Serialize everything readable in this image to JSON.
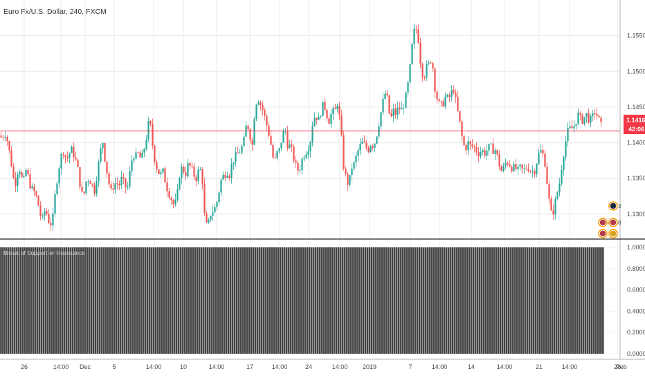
{
  "header": {
    "title": "Euro Fx/U.S. Dollar, 240, FXCM"
  },
  "price_tag": {
    "price": "1.14164",
    "countdown": "42:06"
  },
  "indicator": {
    "title": "Break of Support or Resistance"
  },
  "colors": {
    "up": "#26a69a",
    "down": "#ef5350",
    "price_line": "#f23645",
    "indicator_bar": "#555555",
    "grid": "#e9e9ed",
    "axis_text": "#4a4a4a",
    "separator": "#222222"
  },
  "event_icons": [
    {
      "name": "event-icon-1",
      "label": "3",
      "flag": "dark"
    },
    {
      "name": "event-icon-2",
      "label": "4",
      "flag": "us"
    },
    {
      "name": "event-icon-3",
      "label": "8",
      "flag": "us"
    },
    {
      "name": "event-icon-4",
      "label": "",
      "flag": "us"
    },
    {
      "name": "event-icon-5",
      "label": "",
      "flag": "de"
    }
  ],
  "chart_data": [
    {
      "type": "candlestick",
      "title": "Euro Fx/U.S. Dollar, 240, FXCM",
      "ylim": [
        1.1265,
        1.16
      ],
      "y_ticks": [
        "1.13000",
        "1.13500",
        "1.14000",
        "1.14500",
        "1.15000",
        "1.15500"
      ],
      "x_ticks": [
        "26",
        "14:00",
        "Dec",
        "5",
        "14:00",
        "10",
        "14:00",
        "17",
        "14:00",
        "24",
        "14:00",
        "2019",
        "7",
        "14:00",
        "14",
        "14:00",
        "21",
        "14:00",
        "28",
        "Feb"
      ],
      "current_price": 1.14164,
      "grid": true,
      "close_path": [
        [
          0,
          1.141
        ],
        [
          3,
          1.1405
        ],
        [
          6,
          1.1415
        ],
        [
          9,
          1.1412
        ],
        [
          12,
          1.1395
        ],
        [
          15,
          1.138
        ],
        [
          18,
          1.136
        ],
        [
          21,
          1.134
        ],
        [
          24,
          1.135
        ],
        [
          27,
          1.137
        ],
        [
          30,
          1.1355
        ],
        [
          33,
          1.1345
        ],
        [
          36,
          1.135
        ],
        [
          38,
          1.1365
        ],
        [
          42,
          1.1345
        ],
        [
          46,
          1.1335
        ],
        [
          50,
          1.133
        ],
        [
          54,
          1.132
        ],
        [
          58,
          1.13
        ],
        [
          61,
          1.129
        ],
        [
          64,
          1.1305
        ],
        [
          68,
          1.13
        ],
        [
          72,
          1.1285
        ],
        [
          76,
          1.129
        ],
        [
          80,
          1.133
        ],
        [
          84,
          1.136
        ],
        [
          88,
          1.138
        ],
        [
          92,
          1.139
        ],
        [
          96,
          1.1375
        ],
        [
          100,
          1.1385
        ],
        [
          104,
          1.139
        ],
        [
          108,
          1.138
        ],
        [
          112,
          1.1365
        ],
        [
          116,
          1.134
        ],
        [
          120,
          1.132
        ],
        [
          124,
          1.1345
        ],
        [
          128,
          1.135
        ],
        [
          132,
          1.1345
        ],
        [
          136,
          1.133
        ],
        [
          140,
          1.1355
        ],
        [
          144,
          1.138
        ],
        [
          148,
          1.1405
        ],
        [
          152,
          1.1375
        ],
        [
          156,
          1.135
        ],
        [
          160,
          1.133
        ],
        [
          164,
          1.134
        ],
        [
          168,
          1.1345
        ],
        [
          172,
          1.134
        ],
        [
          176,
          1.135
        ],
        [
          180,
          1.134
        ],
        [
          184,
          1.1335
        ],
        [
          188,
          1.136
        ],
        [
          192,
          1.1385
        ],
        [
          196,
          1.138
        ],
        [
          200,
          1.1385
        ],
        [
          204,
          1.1375
        ],
        [
          208,
          1.139
        ],
        [
          212,
          1.141
        ],
        [
          216,
          1.1435
        ],
        [
          220,
          1.14
        ],
        [
          224,
          1.1375
        ],
        [
          228,
          1.136
        ],
        [
          232,
          1.1355
        ],
        [
          236,
          1.136
        ],
        [
          240,
          1.134
        ],
        [
          244,
          1.133
        ],
        [
          248,
          1.132
        ],
        [
          252,
          1.131
        ],
        [
          256,
          1.1325
        ],
        [
          260,
          1.136
        ],
        [
          264,
          1.1365
        ],
        [
          268,
          1.1355
        ],
        [
          272,
          1.137
        ],
        [
          276,
          1.1365
        ],
        [
          280,
          1.1355
        ],
        [
          284,
          1.135
        ],
        [
          288,
          1.1365
        ],
        [
          292,
          1.1355
        ],
        [
          296,
          1.129
        ],
        [
          300,
          1.128
        ],
        [
          304,
          1.13
        ],
        [
          308,
          1.1305
        ],
        [
          312,
          1.131
        ],
        [
          316,
          1.133
        ],
        [
          320,
          1.135
        ],
        [
          324,
          1.1355
        ],
        [
          328,
          1.136
        ],
        [
          332,
          1.1355
        ],
        [
          336,
          1.1375
        ],
        [
          340,
          1.138
        ],
        [
          344,
          1.1385
        ],
        [
          348,
          1.139
        ],
        [
          352,
          1.14
        ],
        [
          356,
          1.1425
        ],
        [
          360,
          1.142
        ],
        [
          364,
          1.139
        ],
        [
          368,
          1.1445
        ],
        [
          372,
          1.1465
        ],
        [
          376,
          1.1455
        ],
        [
          380,
          1.1445
        ],
        [
          384,
          1.143
        ],
        [
          388,
          1.1415
        ],
        [
          392,
          1.1395
        ],
        [
          396,
          1.137
        ],
        [
          400,
          1.1385
        ],
        [
          404,
          1.139
        ],
        [
          408,
          1.141
        ],
        [
          412,
          1.142
        ],
        [
          416,
          1.1395
        ],
        [
          420,
          1.1395
        ],
        [
          424,
          1.138
        ],
        [
          428,
          1.1365
        ],
        [
          432,
          1.136
        ],
        [
          436,
          1.1375
        ],
        [
          440,
          1.1385
        ],
        [
          444,
          1.139
        ],
        [
          448,
          1.14
        ],
        [
          452,
          1.143
        ],
        [
          456,
          1.144
        ],
        [
          460,
          1.143
        ],
        [
          464,
          1.1445
        ],
        [
          468,
          1.1455
        ],
        [
          472,
          1.144
        ],
        [
          476,
          1.143
        ],
        [
          480,
          1.1445
        ],
        [
          484,
          1.144
        ],
        [
          486,
          1.146
        ],
        [
          488,
          1.1455
        ],
        [
          490,
          1.144
        ],
        [
          492,
          1.142
        ],
        [
          494,
          1.14
        ],
        [
          496,
          1.137
        ],
        [
          500,
          1.135
        ],
        [
          504,
          1.134
        ],
        [
          508,
          1.1365
        ],
        [
          512,
          1.137
        ],
        [
          516,
          1.1385
        ],
        [
          520,
          1.1395
        ],
        [
          524,
          1.14
        ],
        [
          528,
          1.1395
        ],
        [
          532,
          1.139
        ],
        [
          536,
          1.14
        ],
        [
          540,
          1.1395
        ],
        [
          544,
          1.141
        ],
        [
          548,
          1.143
        ],
        [
          552,
          1.145
        ],
        [
          556,
          1.147
        ],
        [
          560,
          1.146
        ],
        [
          564,
          1.143
        ],
        [
          568,
          1.1445
        ],
        [
          572,
          1.144
        ],
        [
          576,
          1.145
        ],
        [
          580,
          1.1445
        ],
        [
          584,
          1.1455
        ],
        [
          588,
          1.147
        ],
        [
          592,
          1.15
        ],
        [
          596,
          1.154
        ],
        [
          600,
          1.1565
        ],
        [
          604,
          1.155
        ],
        [
          608,
          1.151
        ],
        [
          612,
          1.149
        ],
        [
          616,
          1.1505
        ],
        [
          620,
          1.151
        ],
        [
          624,
          1.152
        ],
        [
          628,
          1.148
        ],
        [
          632,
          1.146
        ],
        [
          636,
          1.145
        ],
        [
          640,
          1.1455
        ],
        [
          644,
          1.1465
        ],
        [
          648,
          1.146
        ],
        [
          652,
          1.147
        ],
        [
          656,
          1.1475
        ],
        [
          660,
          1.145
        ],
        [
          664,
          1.143
        ],
        [
          668,
          1.1405
        ],
        [
          672,
          1.139
        ],
        [
          676,
          1.14
        ],
        [
          680,
          1.1395
        ],
        [
          684,
          1.1395
        ],
        [
          688,
          1.139
        ],
        [
          692,
          1.1385
        ],
        [
          696,
          1.139
        ],
        [
          700,
          1.1385
        ],
        [
          704,
          1.139
        ],
        [
          708,
          1.1395
        ],
        [
          712,
          1.139
        ],
        [
          716,
          1.139
        ],
        [
          720,
          1.1375
        ],
        [
          724,
          1.136
        ],
        [
          728,
          1.1365
        ],
        [
          732,
          1.1375
        ],
        [
          736,
          1.137
        ],
        [
          740,
          1.1365
        ],
        [
          744,
          1.1365
        ],
        [
          748,
          1.136
        ],
        [
          752,
          1.1365
        ],
        [
          756,
          1.136
        ],
        [
          760,
          1.1365
        ],
        [
          764,
          1.1365
        ],
        [
          768,
          1.136
        ],
        [
          772,
          1.136
        ],
        [
          776,
          1.1375
        ],
        [
          780,
          1.139
        ],
        [
          784,
          1.1385
        ],
        [
          788,
          1.137
        ],
        [
          792,
          1.133
        ],
        [
          796,
          1.13
        ],
        [
          800,
          1.1305
        ],
        [
          804,
          1.1325
        ],
        [
          808,
          1.134
        ],
        [
          812,
          1.137
        ],
        [
          816,
          1.1395
        ],
        [
          820,
          1.1415
        ],
        [
          824,
          1.142
        ],
        [
          828,
          1.142
        ],
        [
          832,
          1.143
        ],
        [
          836,
          1.144
        ],
        [
          840,
          1.143
        ],
        [
          844,
          1.1435
        ],
        [
          848,
          1.144
        ],
        [
          852,
          1.143
        ],
        [
          856,
          1.1435
        ],
        [
          860,
          1.1445
        ],
        [
          864,
          1.1435
        ],
        [
          868,
          1.1425
        ],
        [
          871,
          1.1416
        ]
      ]
    },
    {
      "type": "bar",
      "title": "Break of Support or Resistance",
      "ylim": [
        0,
        1
      ],
      "y_ticks": [
        "1.0000",
        "0.8000",
        "0.6000",
        "0.4000",
        "0.2000",
        "0.0000"
      ],
      "value_every_bar": 1.0,
      "grid": true
    }
  ]
}
